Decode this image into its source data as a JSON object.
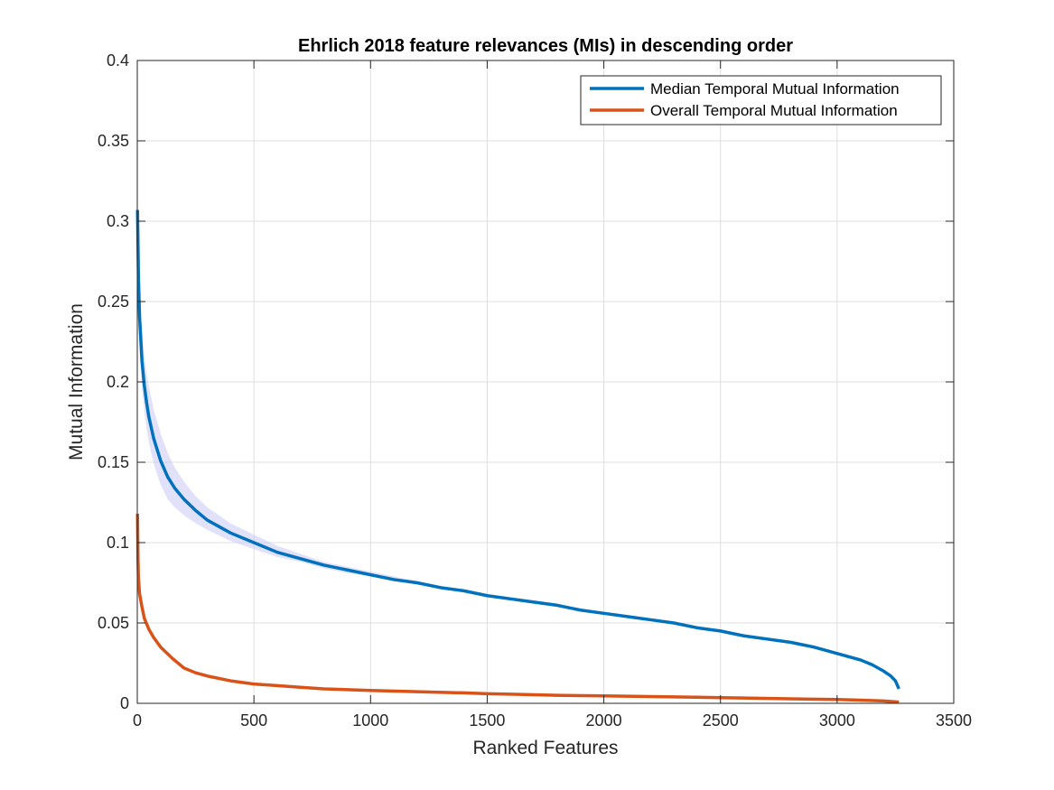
{
  "chart_data": {
    "type": "line",
    "title": "Ehrlich 2018 feature relevances (MIs) in descending order",
    "xlabel": "Ranked Features",
    "ylabel": "Mutual Information",
    "xlim": [
      0,
      3500
    ],
    "ylim": [
      0,
      0.4
    ],
    "xticks": [
      0,
      500,
      1000,
      1500,
      2000,
      2500,
      3000,
      3500
    ],
    "xtick_labels": [
      "0",
      "500",
      "1000",
      "1500",
      "2000",
      "2500",
      "3000",
      "3500"
    ],
    "yticks": [
      0,
      0.05,
      0.1,
      0.15,
      0.2,
      0.25,
      0.3,
      0.35,
      0.4
    ],
    "ytick_labels": [
      "0",
      "0.05",
      "0.1",
      "0.15",
      "0.2",
      "0.25",
      "0.3",
      "0.35",
      "0.4"
    ],
    "grid": true,
    "legend_position": "top-right",
    "series": [
      {
        "name": "Median Temporal Mutual Information",
        "color": "#0072BD",
        "x": [
          1,
          5,
          10,
          20,
          30,
          40,
          50,
          70,
          100,
          130,
          160,
          200,
          250,
          300,
          400,
          500,
          600,
          700,
          800,
          900,
          1000,
          1100,
          1200,
          1300,
          1400,
          1500,
          1600,
          1700,
          1800,
          1900,
          2000,
          2100,
          2200,
          2300,
          2400,
          2500,
          2600,
          2700,
          2800,
          2900,
          3000,
          3100,
          3150,
          3200,
          3230,
          3250,
          3265
        ],
        "y": [
          0.307,
          0.265,
          0.24,
          0.213,
          0.198,
          0.187,
          0.178,
          0.165,
          0.151,
          0.141,
          0.134,
          0.127,
          0.12,
          0.114,
          0.106,
          0.1,
          0.094,
          0.09,
          0.086,
          0.083,
          0.08,
          0.077,
          0.075,
          0.072,
          0.07,
          0.067,
          0.065,
          0.063,
          0.061,
          0.058,
          0.056,
          0.054,
          0.052,
          0.05,
          0.047,
          0.045,
          0.042,
          0.04,
          0.038,
          0.035,
          0.031,
          0.027,
          0.024,
          0.02,
          0.017,
          0.014,
          0.009
        ],
        "band_lower": [
          0.29,
          0.245,
          0.222,
          0.197,
          0.182,
          0.171,
          0.162,
          0.149,
          0.136,
          0.127,
          0.122,
          0.117,
          0.112,
          0.108,
          0.101,
          0.096,
          0.091,
          0.088,
          0.084,
          0.081,
          0.079,
          0.076,
          0.074,
          0.071,
          0.069,
          0.066,
          0.064,
          0.062,
          0.06,
          0.057,
          0.055,
          0.053,
          0.051,
          0.049,
          0.046,
          0.044,
          0.041,
          0.039,
          0.037,
          0.034,
          0.03,
          0.026,
          0.023,
          0.019,
          0.016,
          0.013,
          0.008
        ],
        "band_upper": [
          0.31,
          0.28,
          0.258,
          0.232,
          0.216,
          0.205,
          0.197,
          0.183,
          0.168,
          0.156,
          0.147,
          0.138,
          0.129,
          0.122,
          0.112,
          0.105,
          0.098,
          0.093,
          0.088,
          0.085,
          0.082,
          0.079,
          0.076,
          0.073,
          0.071,
          0.068,
          0.066,
          0.064,
          0.062,
          0.059,
          0.057,
          0.055,
          0.053,
          0.051,
          0.048,
          0.046,
          0.043,
          0.041,
          0.039,
          0.036,
          0.032,
          0.028,
          0.025,
          0.021,
          0.018,
          0.015,
          0.01
        ]
      },
      {
        "name": "Overall Temporal Mutual Information",
        "color": "#D95319",
        "x": [
          1,
          3,
          5,
          10,
          20,
          30,
          50,
          70,
          100,
          150,
          200,
          250,
          300,
          400,
          500,
          600,
          700,
          800,
          900,
          1000,
          1200,
          1400,
          1500,
          1600,
          1800,
          2000,
          2200,
          2400,
          2500,
          2600,
          2800,
          3000,
          3100,
          3200,
          3265
        ],
        "y": [
          0.118,
          0.09,
          0.078,
          0.068,
          0.06,
          0.053,
          0.046,
          0.041,
          0.035,
          0.028,
          0.022,
          0.019,
          0.017,
          0.014,
          0.012,
          0.011,
          0.01,
          0.009,
          0.0085,
          0.008,
          0.0072,
          0.0065,
          0.006,
          0.0057,
          0.005,
          0.0046,
          0.0042,
          0.0038,
          0.0035,
          0.0033,
          0.0028,
          0.0024,
          0.002,
          0.0015,
          0.0008
        ]
      }
    ]
  }
}
